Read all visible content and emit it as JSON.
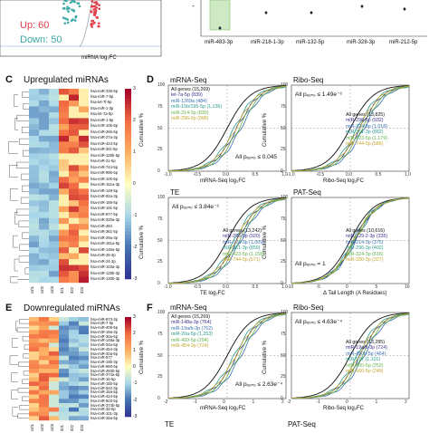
{
  "volcano": {
    "up_label": "Up: 60",
    "down_label": "Down: 50",
    "xlabel": "miRNA log₂FC",
    "up_color": "#e0404a",
    "down_color": "#3aa9a6"
  },
  "barplot": {
    "categories": [
      "miR-483-3p",
      "miR-218-1-3p",
      "miR-132-5p",
      "miR-328-3p",
      "miR-212-5p"
    ]
  },
  "panels": {
    "C": "C",
    "D": "D",
    "E": "E",
    "F": "F"
  },
  "heatmap_up": {
    "title": "Upregulated miRNAs",
    "samples": [
      "ctrl1",
      "ctrl2",
      "ctrl3",
      "d21",
      "d22",
      "d23"
    ],
    "scale_ticks": [
      "3",
      "2",
      "1",
      "0",
      "-1",
      "-2",
      "-3"
    ],
    "rows": [
      "hsa-miR-335-5p",
      "hsa-miR-7-5p",
      "hsa-let-7f-5p",
      "hsa-miR-1-3p",
      "hsa-let-7a-5p",
      "hsa-miR-1-5p",
      "hsa-miR-10b-5p",
      "hsa-miR-26b-5p",
      "hsa-miR-27a-3p",
      "hsa-miR-423-5p",
      "hsa-miR-30c-5p",
      "hsa-miR-125b-5p",
      "hsa-miR-21-5p",
      "hsa-miR-744-5p",
      "hsa-miR-99b-5p",
      "hsa-miR-100-5p",
      "hsa-miR-151a-3p",
      "hsa-miR-149-5p",
      "hsa-miR-92a-3p",
      "hsa-miR-186-5p",
      "hsa-miR-191-5p",
      "hsa-miR-877-5p",
      "hsa-miR-320a-3p",
      "hsa-miR-484",
      "hsa-miR-361-5p",
      "hsa-miR-29a-3p",
      "hsa-miR-181a-5p",
      "hsa-miR-146a-5p",
      "hsa-miR-28-3p",
      "hsa-miR-24-3p",
      "hsa-miR-103a-3p",
      "hsa-miR-129b-3p",
      "hsa-miR-130b-3p"
    ]
  },
  "heatmap_down": {
    "title": "Downregulated miRNAs",
    "samples": [
      "ctrl1",
      "ctrl2",
      "ctrl3",
      "d21",
      "d22",
      "d23"
    ],
    "scale_ticks": [
      "3",
      "2",
      "1",
      "0",
      "-1",
      "-2",
      "-3"
    ],
    "rows": [
      "hsa-miR-873-3p",
      "hsa-miR-7-5p",
      "hsa-miR-409-5p",
      "hsa-miR-19a-3p",
      "hsa-miR-30a-5p",
      "hsa-miR-148a-3p",
      "hsa-miR-34a-5p",
      "hsa-miR-454-3p",
      "hsa-miR-20a-5p",
      "hsa-miR-577",
      "hsa-miR-19b-3p",
      "hsa-miR-660-5p",
      "hsa-miR-450b-5p",
      "hsa-miR-374a-5p",
      "hsa-miR-16-5p",
      "hsa-miR-15b-5p",
      "hsa-miR-542-3p",
      "hsa-miR-15a-5p",
      "hsa-miR-424-5p",
      "hsa-miR-503-5p",
      "hsa-miR-374b-5p",
      "hsa-miR-32-5p",
      "hsa-miR-101-3p",
      "hsa-miR-26a-5p"
    ]
  },
  "cdf_panels": [
    {
      "id": "mrna-up",
      "title": "mRNA-Seq",
      "xlabel": "mRNA-Seq log₂FC",
      "pval": "All pₑₒₙₒ ≤ 0.045",
      "legend": [
        {
          "text": "All genes (15,269)",
          "color": "#111111"
        },
        {
          "text": "let-7a-5p (839)",
          "color": "#3a2e8a"
        },
        {
          "text": "miR-1269a (484)",
          "color": "#3a6fb0"
        },
        {
          "text": "miR-15b/195-5p (1,136)",
          "color": "#2a9a90"
        },
        {
          "text": "miR-214-3p (830)",
          "color": "#62b04a"
        },
        {
          "text": "miR-296-3p (996)",
          "color": "#c2a42a"
        }
      ],
      "xticks": [
        "-1.0",
        "-0.5",
        "0.0",
        "0.5",
        "1.0"
      ]
    },
    {
      "id": "ribo-up",
      "title": "Ribo-Seq",
      "xlabel": "Ribo-Seq log₂FC",
      "pval": "All pₑₒₙₒ ≤ 1.49e⁻⁶",
      "legend": [
        {
          "text": "All genes (13,825)",
          "color": "#111111"
        },
        {
          "text": "miR-296-5p (932)",
          "color": "#3a2e8a"
        },
        {
          "text": "miR-324-3p (1,018)",
          "color": "#3a6fb0"
        },
        {
          "text": "miR-361-3p (882)",
          "color": "#2a9a90"
        },
        {
          "text": "miR-423-5p (1,179)",
          "color": "#62b04a"
        },
        {
          "text": "miR-744-5p (586)",
          "color": "#c2a42a"
        }
      ],
      "xticks": [
        "-1.0",
        "-0.5",
        "0.0",
        "0.5",
        "1.0"
      ]
    },
    {
      "id": "te-up",
      "title": "TE",
      "xlabel": "TE log₂FC",
      "pval": "All pₑₒₙₒ ≤ 3.84e⁻⁶",
      "legend": [
        {
          "text": "All genes (13,242)",
          "color": "#111111"
        },
        {
          "text": "miR-296-5p (920)",
          "color": "#3a2e8a"
        },
        {
          "text": "miR-324-3p (1,009)",
          "color": "#3a6fb0"
        },
        {
          "text": "miR-361-3p (859)",
          "color": "#2a9a90"
        },
        {
          "text": "miR-423-5p (1,158)",
          "color": "#62b04a"
        },
        {
          "text": "miR-744-5p (571)",
          "color": "#c2a42a"
        }
      ],
      "xticks": [
        "-1.0",
        "-0.5",
        "0.0",
        "0.5",
        "1.0"
      ]
    },
    {
      "id": "pat-up",
      "title": "PAT-Seq",
      "xlabel": "Δ Tail Length (A Residues)",
      "pval": "All pₑₒₙₒ = 1",
      "legend": [
        {
          "text": "All genes (10,616)",
          "color": "#111111"
        },
        {
          "text": "miR-129-2-3p (335)",
          "color": "#3a2e8a"
        },
        {
          "text": "miR-214-3p (375)",
          "color": "#3a6fb0"
        },
        {
          "text": "miR-296-3p (402)",
          "color": "#2a9a90"
        },
        {
          "text": "miR-324-3p (616)",
          "color": "#62b04a"
        },
        {
          "text": "miR-330-3p (327)",
          "color": "#c2a42a"
        }
      ],
      "xticks": [
        "-10",
        "-5",
        "0",
        "5",
        "10"
      ]
    },
    {
      "id": "mrna-down",
      "title": "mRNA-Seq",
      "xlabel": "mRNA-Seq log₂FC",
      "pval": "All pₑₒₙₒ ≤ 2.63e⁻⁴",
      "legend": [
        {
          "text": "All genes (15,269)",
          "color": "#111111"
        },
        {
          "text": "miR-148a-3p (764)",
          "color": "#3a2e8a"
        },
        {
          "text": "miR-19a/b-3p (762)",
          "color": "#3a6fb0"
        },
        {
          "text": "miR-20a-5p (1,253)",
          "color": "#2a9a90"
        },
        {
          "text": "miR-409-5p (294)",
          "color": "#62b04a"
        },
        {
          "text": "miR-454-3p (724)",
          "color": "#c2a42a"
        }
      ],
      "xticks": [
        "-2",
        "-1",
        "0",
        "1",
        "2"
      ]
    },
    {
      "id": "ribo-down",
      "title": "Ribo-Seq",
      "xlabel": "Ribo-Seq log₂FC",
      "pval": "All pₑₒₙₒ ≤ 4.63e⁻⁴",
      "legend": [
        {
          "text": "All genes (13,285)",
          "color": "#111111"
        },
        {
          "text": "miR-19a/b-3p (724)",
          "color": "#3a2e8a"
        },
        {
          "text": "miR-450b-5p (464)",
          "color": "#3a6fb0"
        },
        {
          "text": "miR-577 (1,101)",
          "color": "#2a9a90"
        },
        {
          "text": "miR-660-5p (253)",
          "color": "#62b04a"
        },
        {
          "text": "miR-660-5p (249)",
          "color": "#c2a42a"
        }
      ],
      "xticks": [
        "-2",
        "-1",
        "0",
        "1",
        "2"
      ]
    }
  ],
  "ylabel_cdf": "Cumulative %",
  "yticks": [
    "100",
    "75",
    "50",
    "25",
    "0"
  ],
  "bottom_titles": {
    "left": "TE",
    "right": "PAT-Seq"
  }
}
